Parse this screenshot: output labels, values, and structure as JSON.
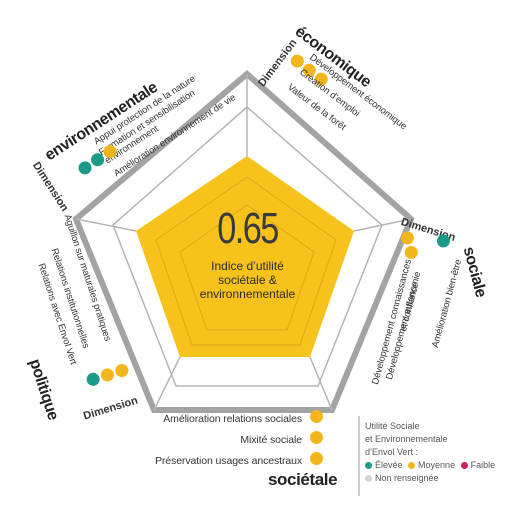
{
  "center": {
    "score": "0.65",
    "label_line1": "Indice d’utilité",
    "label_line2": "sociétale &",
    "label_line3": "environnementale"
  },
  "colors": {
    "fill": "#f7c21b",
    "outline": "#9c9c9c",
    "grid": "#c9a21a",
    "teal": "#1c9a88",
    "amber": "#f2b61c",
    "crimson": "#d2204e",
    "grey": "#d4d4d4"
  },
  "dimension_word": "Dimension",
  "sections": {
    "environmentale": {
      "title": "environnementale",
      "items": [
        "Appui protection de la nature",
        "Formation et sensibilisation",
        "environnement",
        "Amélioration environnement de vie"
      ],
      "dots": [
        "teal",
        "teal",
        "amber"
      ]
    },
    "economique": {
      "title": "économique",
      "items": [
        "Développement économique",
        "Création d’emploi",
        "Valeur de la forêt"
      ],
      "dots": [
        "amber",
        "amber",
        "amber"
      ]
    },
    "sociale": {
      "title": "sociale",
      "items": [
        "Développement connaissances",
        "Développement autonomie",
        "et confiance",
        "Amélioration bien-être"
      ],
      "dots": [
        "amber",
        "amber",
        "teal"
      ]
    },
    "societale": {
      "title": "sociétale",
      "items": [
        "Amélioration relations sociales",
        "Mixité sociale",
        "Préservation usages ancestraux"
      ],
      "dots": [
        "amber",
        "amber",
        "amber"
      ]
    },
    "politique": {
      "title": "politique",
      "items": [
        "Aguillon sur maturales pratiques",
        "Relations institutionnelles",
        "Relations avec Envol Vert"
      ],
      "dots": [
        "teal",
        "amber",
        "amber"
      ]
    }
  },
  "legend": {
    "line1": "Utilité Sociale",
    "line2": "et Environnementale",
    "line3": "d’Envol Vert :",
    "high": "Élevée",
    "medium": "Moyenne",
    "low": "Faible",
    "none": "Non renseignée"
  }
}
